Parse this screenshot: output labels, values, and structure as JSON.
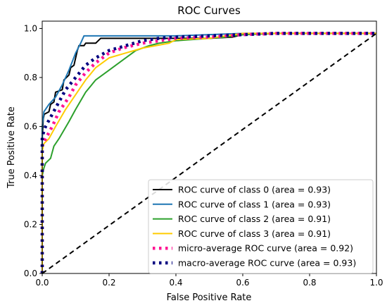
{
  "chart_data": {
    "type": "line",
    "title": "ROC Curves",
    "xlabel": "False Positive Rate",
    "ylabel": "True Positive Rate",
    "xlim": [
      0.0,
      1.0
    ],
    "ylim": [
      0.0,
      1.03
    ],
    "xticks": [
      "0.0",
      "0.2",
      "0.4",
      "0.6",
      "0.8",
      "1.0"
    ],
    "yticks": [
      "0.0",
      "0.2",
      "0.4",
      "0.6",
      "0.8",
      "1.0"
    ],
    "grid": false,
    "legend_position": "lower-right",
    "series": [
      {
        "name": "ROC curve of class 0 (area = 0.93)",
        "color": "#000000",
        "style": "solid",
        "points": [
          [
            0,
            0
          ],
          [
            0,
            0.55
          ],
          [
            0.003,
            0.63
          ],
          [
            0.006,
            0.65
          ],
          [
            0.02,
            0.66
          ],
          [
            0.025,
            0.69
          ],
          [
            0.035,
            0.7
          ],
          [
            0.04,
            0.74
          ],
          [
            0.06,
            0.75
          ],
          [
            0.065,
            0.79
          ],
          [
            0.08,
            0.81
          ],
          [
            0.085,
            0.84
          ],
          [
            0.095,
            0.85
          ],
          [
            0.1,
            0.88
          ],
          [
            0.105,
            0.91
          ],
          [
            0.11,
            0.93
          ],
          [
            0.125,
            0.93
          ],
          [
            0.13,
            0.94
          ],
          [
            0.16,
            0.94
          ],
          [
            0.175,
            0.96
          ],
          [
            0.3,
            0.96
          ],
          [
            0.35,
            0.96
          ],
          [
            0.4,
            0.96
          ],
          [
            0.5,
            0.96
          ],
          [
            0.57,
            0.965
          ],
          [
            0.6,
            0.975
          ],
          [
            0.7,
            0.98
          ],
          [
            1.0,
            0.98
          ]
        ]
      },
      {
        "name": "ROC curve of class 1 (area = 0.93)",
        "color": "#1f77b4",
        "style": "solid",
        "points": [
          [
            0,
            0
          ],
          [
            0,
            0.6
          ],
          [
            0.005,
            0.66
          ],
          [
            0.02,
            0.69
          ],
          [
            0.04,
            0.72
          ],
          [
            0.06,
            0.77
          ],
          [
            0.08,
            0.83
          ],
          [
            0.1,
            0.9
          ],
          [
            0.115,
            0.94
          ],
          [
            0.125,
            0.97
          ],
          [
            0.2,
            0.97
          ],
          [
            0.3,
            0.97
          ],
          [
            0.4,
            0.97
          ],
          [
            0.5,
            0.975
          ],
          [
            0.6,
            0.98
          ],
          [
            1.0,
            0.98
          ]
        ]
      },
      {
        "name": "ROC curve of class 2 (area = 0.91)",
        "color": "#2ca02c",
        "style": "solid",
        "points": [
          [
            0,
            0
          ],
          [
            0,
            0.4
          ],
          [
            0.005,
            0.43
          ],
          [
            0.01,
            0.45
          ],
          [
            0.025,
            0.47
          ],
          [
            0.035,
            0.52
          ],
          [
            0.05,
            0.55
          ],
          [
            0.08,
            0.62
          ],
          [
            0.1,
            0.67
          ],
          [
            0.13,
            0.74
          ],
          [
            0.16,
            0.79
          ],
          [
            0.2,
            0.83
          ],
          [
            0.24,
            0.87
          ],
          [
            0.28,
            0.91
          ],
          [
            0.32,
            0.93
          ],
          [
            0.35,
            0.94
          ],
          [
            0.4,
            0.95
          ],
          [
            0.5,
            0.96
          ],
          [
            0.55,
            0.965
          ],
          [
            0.6,
            0.975
          ],
          [
            0.7,
            0.98
          ],
          [
            1.0,
            0.98
          ]
        ]
      },
      {
        "name": "ROC curve of class 3 (area = 0.91)",
        "color": "#ffcc00",
        "style": "solid",
        "points": [
          [
            0,
            0
          ],
          [
            0,
            0.5
          ],
          [
            0.005,
            0.53
          ],
          [
            0.02,
            0.55
          ],
          [
            0.04,
            0.6
          ],
          [
            0.07,
            0.67
          ],
          [
            0.1,
            0.73
          ],
          [
            0.13,
            0.79
          ],
          [
            0.16,
            0.84
          ],
          [
            0.2,
            0.88
          ],
          [
            0.25,
            0.9
          ],
          [
            0.3,
            0.92
          ],
          [
            0.34,
            0.93
          ],
          [
            0.38,
            0.94
          ],
          [
            0.4,
            0.955
          ],
          [
            0.5,
            0.96
          ],
          [
            0.55,
            0.97
          ],
          [
            0.6,
            0.98
          ],
          [
            1.0,
            0.98
          ]
        ]
      },
      {
        "name": "micro-average ROC curve (area = 0.92)",
        "color": "#ff1493",
        "style": "dotted",
        "points": [
          [
            0,
            0
          ],
          [
            0,
            0.52
          ],
          [
            0.01,
            0.55
          ],
          [
            0.03,
            0.6
          ],
          [
            0.05,
            0.66
          ],
          [
            0.08,
            0.72
          ],
          [
            0.1,
            0.77
          ],
          [
            0.13,
            0.82
          ],
          [
            0.16,
            0.86
          ],
          [
            0.2,
            0.9
          ],
          [
            0.24,
            0.92
          ],
          [
            0.3,
            0.94
          ],
          [
            0.35,
            0.95
          ],
          [
            0.4,
            0.96
          ],
          [
            0.5,
            0.965
          ],
          [
            0.6,
            0.975
          ],
          [
            0.7,
            0.98
          ],
          [
            1.0,
            0.98
          ]
        ]
      },
      {
        "name": "macro-average ROC curve (area = 0.93)",
        "color": "#000080",
        "style": "dotted",
        "points": [
          [
            0,
            0
          ],
          [
            0,
            0.56
          ],
          [
            0.01,
            0.6
          ],
          [
            0.03,
            0.65
          ],
          [
            0.05,
            0.7
          ],
          [
            0.07,
            0.75
          ],
          [
            0.1,
            0.8
          ],
          [
            0.13,
            0.85
          ],
          [
            0.16,
            0.88
          ],
          [
            0.2,
            0.91
          ],
          [
            0.25,
            0.93
          ],
          [
            0.3,
            0.95
          ],
          [
            0.35,
            0.96
          ],
          [
            0.4,
            0.965
          ],
          [
            0.5,
            0.97
          ],
          [
            0.6,
            0.975
          ],
          [
            0.7,
            0.98
          ],
          [
            1.0,
            0.98
          ]
        ]
      },
      {
        "name": "",
        "color": "#000000",
        "style": "dashed",
        "points": [
          [
            0,
            0
          ],
          [
            1,
            0.98
          ]
        ]
      }
    ]
  }
}
